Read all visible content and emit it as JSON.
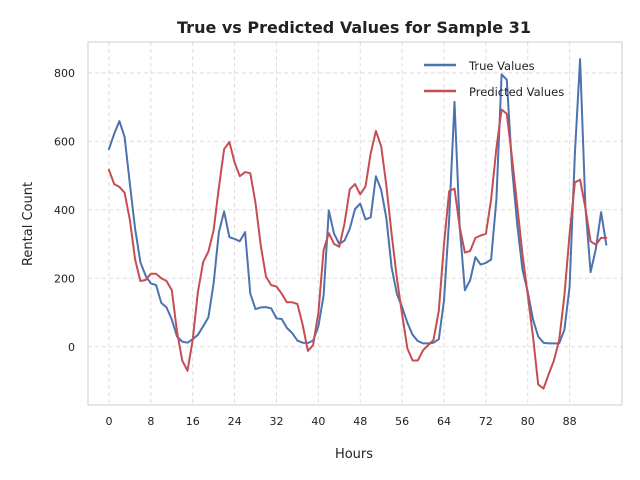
{
  "chart_data": {
    "type": "line",
    "title": "True vs Predicted Values for Sample 31",
    "xlabel": "Hours",
    "ylabel": "Rental Count",
    "xlim": [
      -4,
      98
    ],
    "ylim": [
      -170,
      890
    ],
    "xticks": [
      0,
      8,
      16,
      24,
      32,
      40,
      48,
      56,
      64,
      72,
      80,
      88
    ],
    "yticks": [
      0,
      200,
      400,
      600,
      800
    ],
    "grid": true,
    "legend": "top-right",
    "series": [
      {
        "name": "True Values",
        "color": "#4c72b0",
        "x": [
          0,
          1,
          2,
          3,
          4,
          5,
          6,
          7,
          8,
          9,
          10,
          11,
          12,
          13,
          14,
          15,
          16,
          17,
          18,
          19,
          20,
          21,
          22,
          23,
          24,
          25,
          26,
          27,
          28,
          29,
          30,
          31,
          32,
          33,
          34,
          35,
          36,
          37,
          38,
          39,
          40,
          41,
          42,
          43,
          44,
          45,
          46,
          47,
          48,
          49,
          50,
          51,
          52,
          53,
          54,
          55,
          56,
          57,
          58,
          59,
          60,
          61,
          62,
          63,
          64,
          65,
          66,
          67,
          68,
          69,
          70,
          71,
          72,
          73,
          74,
          75,
          76,
          77,
          78,
          79,
          80,
          81,
          82,
          83,
          84,
          85,
          86,
          87,
          88,
          89,
          90,
          91,
          92,
          93,
          94,
          95
        ],
        "values": [
          577,
          622,
          659,
          613,
          475,
          345,
          247,
          208,
          185,
          180,
          128,
          115,
          80,
          30,
          15,
          12,
          22,
          35,
          60,
          86,
          185,
          335,
          395,
          320,
          315,
          308,
          335,
          155,
          110,
          115,
          116,
          112,
          83,
          81,
          55,
          40,
          18,
          12,
          11,
          18,
          60,
          150,
          398,
          330,
          300,
          310,
          345,
          402,
          418,
          372,
          378,
          498,
          458,
          375,
          232,
          154,
          116,
          70,
          35,
          17,
          10,
          10,
          12,
          22,
          135,
          375,
          715,
          350,
          165,
          195,
          262,
          240,
          245,
          255,
          430,
          795,
          780,
          520,
          355,
          225,
          160,
          80,
          30,
          12,
          10,
          10,
          10,
          50,
          175,
          565,
          840,
          410,
          218,
          285,
          393,
          298
        ]
      },
      {
        "name": "Predicted Values",
        "color": "#c44e52",
        "x": [
          0,
          1,
          2,
          3,
          4,
          5,
          6,
          7,
          8,
          9,
          10,
          11,
          12,
          13,
          14,
          15,
          16,
          17,
          18,
          19,
          20,
          21,
          22,
          23,
          24,
          25,
          26,
          27,
          28,
          29,
          30,
          31,
          32,
          33,
          34,
          35,
          36,
          37,
          38,
          39,
          40,
          41,
          42,
          43,
          44,
          45,
          46,
          47,
          48,
          49,
          50,
          51,
          52,
          53,
          54,
          55,
          56,
          57,
          58,
          59,
          60,
          61,
          62,
          63,
          64,
          65,
          66,
          67,
          68,
          69,
          70,
          71,
          72,
          73,
          74,
          75,
          76,
          77,
          78,
          79,
          80,
          81,
          82,
          83,
          84,
          85,
          86,
          87,
          88,
          89,
          90,
          91,
          92,
          93,
          94,
          95
        ],
        "values": [
          517,
          475,
          467,
          450,
          370,
          255,
          192,
          195,
          213,
          213,
          200,
          192,
          165,
          45,
          -40,
          -70,
          20,
          160,
          248,
          278,
          340,
          465,
          577,
          598,
          538,
          498,
          510,
          507,
          420,
          295,
          205,
          180,
          176,
          155,
          130,
          130,
          125,
          65,
          -12,
          5,
          100,
          282,
          332,
          300,
          292,
          360,
          460,
          475,
          445,
          468,
          565,
          630,
          585,
          470,
          330,
          200,
          95,
          -5,
          -40,
          -40,
          -10,
          5,
          20,
          105,
          300,
          455,
          462,
          350,
          275,
          280,
          318,
          325,
          330,
          430,
          580,
          693,
          680,
          550,
          410,
          270,
          150,
          30,
          -110,
          -122,
          -80,
          -40,
          20,
          150,
          330,
          480,
          488,
          405,
          308,
          298,
          318,
          318
        ]
      }
    ]
  }
}
